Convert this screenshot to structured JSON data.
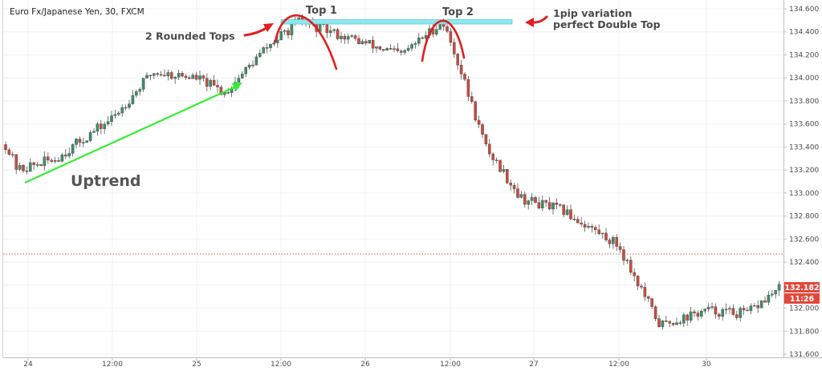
{
  "symbol_label": "Euro Fx/Japanese Yen, 30, FXCM",
  "colors": {
    "up_candle": "#3e8e6a",
    "down_candle": "#c94c3f",
    "wick": "#555555",
    "grid": "#eef0f3",
    "axis": "#c8c8c8",
    "annotation_red": "#e31d1d",
    "trend_green": "#33ee33",
    "top_band": "#8fe7f0",
    "price_badge": "#e0483c"
  },
  "annotations": {
    "rounded_tops": "2 Rounded Tops",
    "top1": "Top 1",
    "top2": "Top 2",
    "pip_line1": "1pip variation",
    "pip_line2": "perfect Double Top",
    "uptrend": "Uptrend"
  },
  "price_badge": {
    "price": "132.182",
    "countdown": "11:26"
  },
  "chart_data": {
    "type": "candlestick",
    "title": "Euro Fx/Japanese Yen, 30, FXCM",
    "ylim": [
      131.6,
      134.6
    ],
    "y_ticks": [
      "134.600",
      "134.400",
      "134.200",
      "134.000",
      "133.800",
      "133.600",
      "133.400",
      "133.200",
      "133.000",
      "132.800",
      "132.600",
      "132.400",
      "132.200",
      "132.000",
      "131.800",
      "131.600"
    ],
    "x_ticks": [
      "24",
      "12:00",
      "25",
      "12:00",
      "26",
      "12:00",
      "27",
      "12:00",
      "30"
    ],
    "last_price": 132.182,
    "reference_line": 132.47,
    "grid": true,
    "keypoints": [
      {
        "label": "24 00:00",
        "close": 133.45
      },
      {
        "label": "24 02:00",
        "close": 133.2
      },
      {
        "label": "24 06:00",
        "close": 133.3
      },
      {
        "label": "24 12:00",
        "close": 133.65
      },
      {
        "label": "24 18:00",
        "close": 134.05
      },
      {
        "label": "25 00:00",
        "close": 134.0
      },
      {
        "label": "25 06:00",
        "close": 133.87
      },
      {
        "label": "25 12:00",
        "close": 134.25
      },
      {
        "label": "Top 1",
        "close": 134.49
      },
      {
        "label": "26 00:00",
        "close": 134.3
      },
      {
        "label": "26 06:00",
        "close": 134.2
      },
      {
        "label": "Top 2",
        "close": 134.49
      },
      {
        "label": "26 12:00",
        "close": 134.25
      },
      {
        "label": "26 18:00",
        "close": 133.4
      },
      {
        "label": "27 00:00",
        "close": 132.95
      },
      {
        "label": "27 06:00",
        "close": 132.85
      },
      {
        "label": "27 12:00",
        "close": 132.55
      },
      {
        "label": "27 18:00",
        "close": 131.85
      },
      {
        "label": "30 00:00",
        "close": 131.98
      },
      {
        "label": "30 06:00",
        "close": 131.95
      },
      {
        "label": "30 10:00",
        "close": 132.18
      }
    ]
  }
}
